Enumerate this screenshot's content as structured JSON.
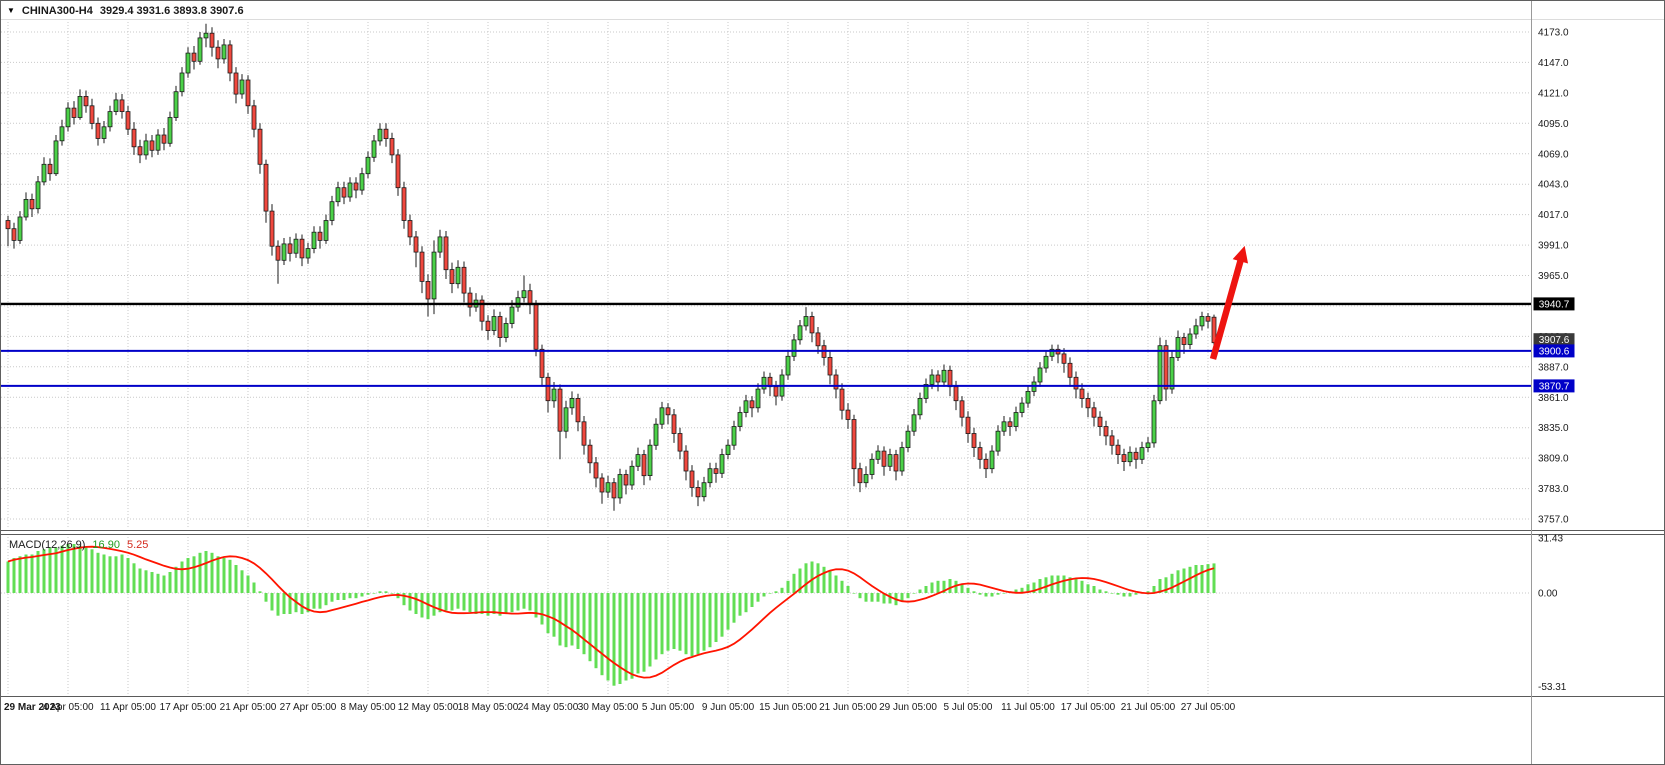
{
  "header": {
    "symbol_label": "CHINA300-H4",
    "ohlc_values": "3929.4 3931.6 3893.8 3907.6"
  },
  "macd_label": {
    "name": "MACD(12,26,9)",
    "main_value": "16.90",
    "signal_value": "5.25"
  },
  "colors": {
    "background": "#FFFFFF",
    "grid": "#C9C9C9",
    "candle_up": "#4BD148",
    "candle_down": "#F0483E",
    "candle_outline": "#1B1B1B",
    "macd_histogram": "#62DE54",
    "macd_signal": "#FF1400",
    "level_black": "#000000",
    "level_blue": "#0000C8",
    "arrow": "#EE1410",
    "axis_text": "#1A1A1A"
  },
  "chart_data": {
    "type": "candlestick",
    "symbol": "CHINA300",
    "timeframe": "H4",
    "indicator": "MACD(12,26,9)",
    "price_axis": {
      "min": 3757,
      "max": 4173,
      "tick_step": 26,
      "ticks": [
        4173,
        4147,
        4121,
        4095,
        4069,
        4043,
        4017,
        3991,
        3965,
        3939,
        3913,
        3887,
        3861,
        3835,
        3809,
        3783,
        3757
      ]
    },
    "levels": [
      {
        "label": "3940.7",
        "value": 3940.7,
        "color": "#000000"
      },
      {
        "label": "3900.6",
        "value": 3900.6,
        "color": "#0000C8"
      },
      {
        "label": "3870.7",
        "value": 3870.7,
        "color": "#0000C8"
      }
    ],
    "current_price": {
      "label": "3907.6",
      "value": 3907.6,
      "color": "#3A3A3A"
    },
    "time_labels": [
      "29 Mar 2023",
      "4 Apr 05:00",
      "11 Apr 05:00",
      "17 Apr 05:00",
      "21 Apr 05:00",
      "27 Apr 05:00",
      "8 May 05:00",
      "12 May 05:00",
      "18 May 05:00",
      "24 May 05:00",
      "30 May 05:00",
      "5 Jun 05:00",
      "9 Jun 05:00",
      "15 Jun 05:00",
      "21 Jun 05:00",
      "29 Jun 05:00",
      "5 Jul 05:00",
      "11 Jul 05:00",
      "17 Jul 05:00",
      "21 Jul 05:00",
      "27 Jul 05:00"
    ],
    "candles": [
      [
        4012,
        4016,
        3990,
        4005
      ],
      [
        4005,
        4010,
        3988,
        3995
      ],
      [
        3995,
        4020,
        3992,
        4015
      ],
      [
        4015,
        4036,
        4012,
        4030
      ],
      [
        4030,
        4035,
        4015,
        4022
      ],
      [
        4022,
        4050,
        4018,
        4045
      ],
      [
        4045,
        4066,
        4042,
        4060
      ],
      [
        4060,
        4065,
        4046,
        4052
      ],
      [
        4052,
        4085,
        4050,
        4080
      ],
      [
        4080,
        4098,
        4076,
        4092
      ],
      [
        4092,
        4113,
        4088,
        4108
      ],
      [
        4108,
        4114,
        4094,
        4100
      ],
      [
        4100,
        4124,
        4098,
        4118
      ],
      [
        4118,
        4123,
        4104,
        4110
      ],
      [
        4110,
        4116,
        4090,
        4095
      ],
      [
        4095,
        4100,
        4076,
        4082
      ],
      [
        4082,
        4097,
        4078,
        4092
      ],
      [
        4092,
        4110,
        4088,
        4105
      ],
      [
        4105,
        4121,
        4102,
        4115
      ],
      [
        4115,
        4120,
        4099,
        4105
      ],
      [
        4105,
        4110,
        4085,
        4090
      ],
      [
        4090,
        4096,
        4068,
        4075
      ],
      [
        4075,
        4081,
        4061,
        4068
      ],
      [
        4068,
        4086,
        4064,
        4080
      ],
      [
        4080,
        4085,
        4066,
        4072
      ],
      [
        4072,
        4090,
        4068,
        4085
      ],
      [
        4085,
        4091,
        4072,
        4078
      ],
      [
        4078,
        4105,
        4075,
        4100
      ],
      [
        4100,
        4127,
        4097,
        4122
      ],
      [
        4122,
        4143,
        4118,
        4138
      ],
      [
        4138,
        4160,
        4134,
        4155
      ],
      [
        4155,
        4161,
        4141,
        4148
      ],
      [
        4148,
        4173,
        4145,
        4168
      ],
      [
        4168,
        4180,
        4160,
        4172
      ],
      [
        4172,
        4177,
        4152,
        4160
      ],
      [
        4160,
        4166,
        4142,
        4150
      ],
      [
        4150,
        4167,
        4146,
        4162
      ],
      [
        4162,
        4166,
        4131,
        4138
      ],
      [
        4138,
        4143,
        4112,
        4120
      ],
      [
        4120,
        4137,
        4116,
        4132
      ],
      [
        4132,
        4136,
        4103,
        4110
      ],
      [
        4110,
        4115,
        4083,
        4090
      ],
      [
        4090,
        4095,
        4052,
        4060
      ],
      [
        4060,
        4064,
        4010,
        4020
      ],
      [
        4020,
        4026,
        3982,
        3990
      ],
      [
        3990,
        3995,
        3958,
        3978
      ],
      [
        3978,
        3997,
        3974,
        3992
      ],
      [
        3992,
        3998,
        3977,
        3984
      ],
      [
        3984,
        4001,
        3980,
        3996
      ],
      [
        3996,
        4000,
        3973,
        3980
      ],
      [
        3980,
        3993,
        3975,
        3988
      ],
      [
        3988,
        4007,
        3984,
        4002
      ],
      [
        4002,
        4007,
        3988,
        3995
      ],
      [
        3995,
        4017,
        3992,
        4012
      ],
      [
        4012,
        4033,
        4008,
        4028
      ],
      [
        4028,
        4045,
        4024,
        4040
      ],
      [
        4040,
        4045,
        4026,
        4032
      ],
      [
        4032,
        4049,
        4028,
        4044
      ],
      [
        4044,
        4049,
        4031,
        4038
      ],
      [
        4038,
        4057,
        4034,
        4052
      ],
      [
        4052,
        4071,
        4048,
        4066
      ],
      [
        4066,
        4085,
        4062,
        4080
      ],
      [
        4080,
        4095,
        4076,
        4090
      ],
      [
        4090,
        4095,
        4075,
        4082
      ],
      [
        4082,
        4087,
        4061,
        4068
      ],
      [
        4068,
        4073,
        4033,
        4040
      ],
      [
        4040,
        4045,
        4005,
        4012
      ],
      [
        4012,
        4017,
        3991,
        3998
      ],
      [
        3998,
        4003,
        3972,
        3985
      ],
      [
        3985,
        3990,
        3950,
        3960
      ],
      [
        3960,
        3966,
        3930,
        3945
      ],
      [
        3945,
        3995,
        3932,
        3985
      ],
      [
        3985,
        4004,
        3980,
        3998
      ],
      [
        3998,
        4003,
        3962,
        3970
      ],
      [
        3970,
        3976,
        3950,
        3958
      ],
      [
        3958,
        3978,
        3954,
        3972
      ],
      [
        3972,
        3977,
        3942,
        3950
      ],
      [
        3950,
        3955,
        3930,
        3938
      ],
      [
        3938,
        3950,
        3934,
        3944
      ],
      [
        3944,
        3948,
        3918,
        3926
      ],
      [
        3926,
        3931,
        3910,
        3918
      ],
      [
        3918,
        3936,
        3914,
        3930
      ],
      [
        3930,
        3934,
        3904,
        3912
      ],
      [
        3912,
        3929,
        3908,
        3924
      ],
      [
        3924,
        3944,
        3920,
        3938
      ],
      [
        3938,
        3952,
        3934,
        3946
      ],
      [
        3946,
        3965,
        3942,
        3952
      ],
      [
        3952,
        3958,
        3932,
        3940
      ],
      [
        3940,
        3944,
        3896,
        3902
      ],
      [
        3902,
        3906,
        3870,
        3878
      ],
      [
        3878,
        3882,
        3848,
        3858
      ],
      [
        3858,
        3874,
        3852,
        3868
      ],
      [
        3868,
        3872,
        3808,
        3832
      ],
      [
        3832,
        3858,
        3826,
        3852
      ],
      [
        3852,
        3866,
        3846,
        3860
      ],
      [
        3860,
        3864,
        3832,
        3840
      ],
      [
        3840,
        3845,
        3812,
        3820
      ],
      [
        3820,
        3825,
        3796,
        3805
      ],
      [
        3805,
        3810,
        3784,
        3792
      ],
      [
        3792,
        3796,
        3770,
        3780
      ],
      [
        3780,
        3794,
        3775,
        3788
      ],
      [
        3788,
        3792,
        3764,
        3775
      ],
      [
        3775,
        3800,
        3770,
        3795
      ],
      [
        3795,
        3799,
        3778,
        3786
      ],
      [
        3786,
        3807,
        3782,
        3802
      ],
      [
        3802,
        3818,
        3798,
        3812
      ],
      [
        3812,
        3816,
        3786,
        3794
      ],
      [
        3794,
        3825,
        3790,
        3820
      ],
      [
        3820,
        3843,
        3816,
        3838
      ],
      [
        3838,
        3857,
        3834,
        3852
      ],
      [
        3852,
        3856,
        3838,
        3846
      ],
      [
        3846,
        3851,
        3822,
        3830
      ],
      [
        3830,
        3835,
        3808,
        3815
      ],
      [
        3815,
        3820,
        3790,
        3798
      ],
      [
        3798,
        3803,
        3776,
        3784
      ],
      [
        3784,
        3790,
        3768,
        3776
      ],
      [
        3776,
        3793,
        3772,
        3788
      ],
      [
        3788,
        3805,
        3784,
        3800
      ],
      [
        3800,
        3805,
        3788,
        3796
      ],
      [
        3796,
        3817,
        3792,
        3812
      ],
      [
        3812,
        3825,
        3808,
        3820
      ],
      [
        3820,
        3841,
        3816,
        3836
      ],
      [
        3836,
        3853,
        3832,
        3848
      ],
      [
        3848,
        3863,
        3844,
        3858
      ],
      [
        3858,
        3862,
        3844,
        3852
      ],
      [
        3852,
        3873,
        3848,
        3868
      ],
      [
        3868,
        3883,
        3864,
        3878
      ],
      [
        3878,
        3882,
        3862,
        3870
      ],
      [
        3870,
        3875,
        3854,
        3862
      ],
      [
        3862,
        3885,
        3858,
        3880
      ],
      [
        3880,
        3901,
        3876,
        3896
      ],
      [
        3896,
        3915,
        3892,
        3910
      ],
      [
        3910,
        3927,
        3906,
        3922
      ],
      [
        3922,
        3938,
        3918,
        3930
      ],
      [
        3930,
        3934,
        3908,
        3916
      ],
      [
        3916,
        3921,
        3898,
        3905
      ],
      [
        3905,
        3910,
        3888,
        3895
      ],
      [
        3895,
        3900,
        3872,
        3880
      ],
      [
        3880,
        3885,
        3860,
        3868
      ],
      [
        3868,
        3873,
        3842,
        3850
      ],
      [
        3850,
        3856,
        3834,
        3842
      ],
      [
        3842,
        3846,
        3785,
        3800
      ],
      [
        3800,
        3805,
        3780,
        3788
      ],
      [
        3788,
        3802,
        3784,
        3795
      ],
      [
        3795,
        3813,
        3791,
        3808
      ],
      [
        3808,
        3820,
        3804,
        3815
      ],
      [
        3815,
        3819,
        3794,
        3802
      ],
      [
        3802,
        3817,
        3798,
        3812
      ],
      [
        3812,
        3816,
        3790,
        3798
      ],
      [
        3798,
        3823,
        3794,
        3818
      ],
      [
        3818,
        3837,
        3814,
        3832
      ],
      [
        3832,
        3851,
        3828,
        3846
      ],
      [
        3846,
        3865,
        3842,
        3860
      ],
      [
        3860,
        3877,
        3856,
        3872
      ],
      [
        3872,
        3885,
        3868,
        3880
      ],
      [
        3880,
        3884,
        3866,
        3874
      ],
      [
        3874,
        3889,
        3870,
        3884
      ],
      [
        3884,
        3888,
        3862,
        3870
      ],
      [
        3870,
        3875,
        3850,
        3858
      ],
      [
        3858,
        3862,
        3836,
        3844
      ],
      [
        3844,
        3849,
        3822,
        3830
      ],
      [
        3830,
        3835,
        3810,
        3818
      ],
      [
        3818,
        3823,
        3800,
        3808
      ],
      [
        3808,
        3813,
        3792,
        3800
      ],
      [
        3800,
        3820,
        3796,
        3815
      ],
      [
        3815,
        3837,
        3811,
        3832
      ],
      [
        3832,
        3845,
        3828,
        3840
      ],
      [
        3840,
        3844,
        3828,
        3836
      ],
      [
        3836,
        3853,
        3832,
        3848
      ],
      [
        3848,
        3861,
        3844,
        3856
      ],
      [
        3856,
        3871,
        3852,
        3866
      ],
      [
        3866,
        3879,
        3862,
        3874
      ],
      [
        3874,
        3891,
        3870,
        3886
      ],
      [
        3886,
        3901,
        3882,
        3896
      ],
      [
        3896,
        3906,
        3892,
        3902
      ],
      [
        3902,
        3906,
        3890,
        3898
      ],
      [
        3898,
        3903,
        3882,
        3890
      ],
      [
        3890,
        3895,
        3870,
        3878
      ],
      [
        3878,
        3883,
        3860,
        3868
      ],
      [
        3868,
        3873,
        3852,
        3860
      ],
      [
        3860,
        3865,
        3844,
        3852
      ],
      [
        3852,
        3857,
        3836,
        3844
      ],
      [
        3844,
        3849,
        3828,
        3836
      ],
      [
        3836,
        3841,
        3820,
        3828
      ],
      [
        3828,
        3833,
        3812,
        3820
      ],
      [
        3820,
        3825,
        3804,
        3812
      ],
      [
        3812,
        3817,
        3798,
        3806
      ],
      [
        3806,
        3819,
        3802,
        3814
      ],
      [
        3814,
        3818,
        3800,
        3808
      ],
      [
        3808,
        3823,
        3804,
        3818
      ],
      [
        3818,
        3827,
        3814,
        3822
      ],
      [
        3822,
        3863,
        3818,
        3858
      ],
      [
        3858,
        3912,
        3855,
        3905
      ],
      [
        3905,
        3910,
        3858,
        3868
      ],
      [
        3868,
        3900,
        3864,
        3895
      ],
      [
        3895,
        3918,
        3892,
        3912
      ],
      [
        3912,
        3916,
        3898,
        3906
      ],
      [
        3906,
        3920,
        3902,
        3915
      ],
      [
        3915,
        3928,
        3911,
        3922
      ],
      [
        3922,
        3934,
        3918,
        3930
      ],
      [
        3930,
        3933,
        3920,
        3926
      ],
      [
        3929.4,
        3931.6,
        3893.8,
        3907.6
      ]
    ],
    "macd": {
      "axis_labels": [
        "31.43",
        "0.00",
        "-53.31"
      ],
      "axis_values": [
        31.43,
        0,
        -53.31
      ],
      "signal_period": 9,
      "histogram": [
        18,
        20,
        21,
        22,
        22,
        24,
        25,
        26,
        26,
        27,
        28,
        28,
        27,
        26,
        25,
        23,
        22,
        21,
        21,
        22,
        20,
        17,
        14,
        13,
        12,
        11,
        10,
        12,
        15,
        18,
        20,
        21,
        23,
        24,
        23,
        21,
        20,
        19,
        16,
        13,
        10,
        6,
        1,
        -5,
        -10,
        -13,
        -12,
        -12,
        -11,
        -12,
        -11,
        -9,
        -9,
        -7,
        -5,
        -4,
        -4,
        -3,
        -3,
        -2,
        -1,
        0,
        1,
        1,
        0,
        -3,
        -7,
        -10,
        -12,
        -14,
        -15,
        -13,
        -11,
        -10,
        -10,
        -9,
        -10,
        -11,
        -12,
        -12,
        -13,
        -12,
        -13,
        -12,
        -11,
        -10,
        -9,
        -10,
        -14,
        -18,
        -23,
        -25,
        -30,
        -31,
        -30,
        -32,
        -35,
        -39,
        -43,
        -47,
        -50,
        -53,
        -52,
        -50,
        -49,
        -46,
        -45,
        -42,
        -38,
        -35,
        -33,
        -32,
        -33,
        -35,
        -36,
        -35,
        -33,
        -31,
        -28,
        -25,
        -21,
        -17,
        -13,
        -11,
        -8,
        -5,
        -2,
        0,
        1,
        3,
        7,
        11,
        14,
        17,
        18,
        17,
        15,
        13,
        10,
        7,
        4,
        0,
        -3,
        -5,
        -5,
        -5,
        -6,
        -6,
        -7,
        -5,
        -3,
        0,
        2,
        4,
        6,
        7,
        7,
        8,
        7,
        5,
        3,
        1,
        -1,
        -2,
        -2,
        -1,
        0,
        1,
        2,
        3,
        5,
        6,
        8,
        9,
        10,
        10,
        10,
        9,
        8,
        7,
        5,
        4,
        2,
        1,
        0,
        -1,
        -2,
        -2,
        -1,
        0,
        1,
        4,
        8,
        9,
        11,
        13,
        14,
        15,
        16,
        16,
        16.5,
        16.9
      ]
    },
    "annotation_arrow": {
      "color": "#EE1410",
      "direction": "up"
    }
  }
}
